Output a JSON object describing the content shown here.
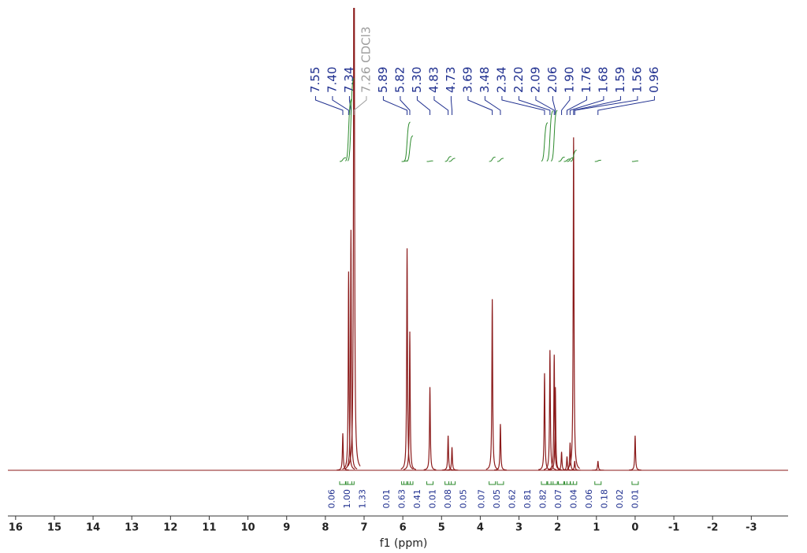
{
  "chart_data": {
    "type": "nmr-spectrum",
    "x_label": "f1 (ppm)",
    "xlim": [
      16.2,
      -3.95
    ],
    "ylim": [
      0,
      100
    ],
    "xticks": [
      16,
      15,
      14,
      13,
      12,
      11,
      10,
      9,
      8,
      7,
      6,
      5,
      4,
      3,
      2,
      1,
      0,
      -1,
      -2,
      -3
    ],
    "color": "#8b1a1a",
    "integral_color": "#2e8b2e",
    "label_color": "#1f2f8f",
    "peaks": {
      "x": [
        7.55,
        7.4,
        7.34,
        7.26,
        5.89,
        5.82,
        5.3,
        4.83,
        4.73,
        3.69,
        3.48,
        2.34,
        2.2,
        2.09,
        2.06,
        1.9,
        1.76,
        1.68,
        1.59,
        1.56,
        0.96,
        0
      ],
      "values": [
        8,
        43,
        52,
        160,
        48,
        30,
        18,
        7.5,
        5,
        37,
        10,
        21,
        26,
        25,
        18,
        4,
        3,
        6,
        72,
        2,
        2,
        7.5
      ]
    },
    "peak_labels": [
      {
        "value": 7.55,
        "label": "7.55"
      },
      {
        "value": 7.4,
        "label": "7.40"
      },
      {
        "value": 7.34,
        "label": "7.34"
      },
      {
        "value": 7.26,
        "label": "7.26 CDCl3",
        "color": "#9e9e9e"
      },
      {
        "value": 5.89,
        "label": "5.89"
      },
      {
        "value": 5.82,
        "label": "5.82"
      },
      {
        "value": 5.3,
        "label": "5.30"
      },
      {
        "value": 4.83,
        "label": "4.83"
      },
      {
        "value": 4.73,
        "label": "4.73"
      },
      {
        "value": 3.69,
        "label": "3.69"
      },
      {
        "value": 3.48,
        "label": "3.48"
      },
      {
        "value": 2.34,
        "label": "2.34"
      },
      {
        "value": 2.2,
        "label": "2.20"
      },
      {
        "value": 2.09,
        "label": "2.09"
      },
      {
        "value": 2.06,
        "label": "2.06"
      },
      {
        "value": 1.9,
        "label": "1.90"
      },
      {
        "value": 1.76,
        "label": "1.76"
      },
      {
        "value": 1.68,
        "label": "1.68"
      },
      {
        "value": 1.59,
        "label": "1.59"
      },
      {
        "value": 1.56,
        "label": "1.56"
      },
      {
        "value": 0.96,
        "label": "0.96"
      }
    ],
    "integrals": {
      "x": [
        7.55,
        7.4,
        7.34,
        5.95,
        5.89,
        5.82,
        5.3,
        4.83,
        4.73,
        3.69,
        3.48,
        2.34,
        2.2,
        2.09,
        1.9,
        1.76,
        1.68,
        1.59,
        0.96,
        0
      ],
      "values": [
        0.06,
        1.0,
        1.33,
        0.01,
        0.63,
        0.41,
        0.01,
        0.08,
        0.05,
        0.07,
        0.05,
        0.62,
        0.81,
        0.82,
        0.07,
        0.04,
        0.06,
        0.18,
        0.02,
        0.01
      ],
      "value_labels": [
        "0.06",
        "1.00",
        "1.33",
        "0.01",
        "0.63",
        "0.41",
        "0.01",
        "0.08",
        "0.05",
        "0.07",
        "0.05",
        "0.62",
        "0.81",
        "0.82",
        "0.07",
        "0.04",
        "0.06",
        "0.18",
        "0.02",
        "0.01"
      ]
    }
  }
}
